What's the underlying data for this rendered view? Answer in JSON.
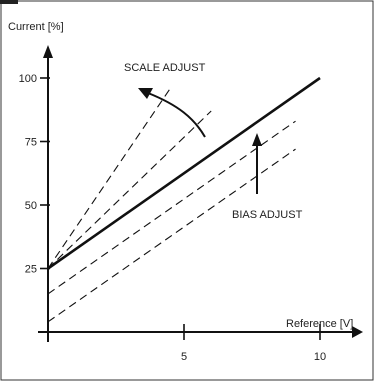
{
  "colors": {
    "ink": "#111111",
    "border": "#333333",
    "background": "#ffffff",
    "corner_tab": "#222222"
  },
  "chart_data": {
    "type": "line",
    "title": "",
    "xlabel": "Reference [V]",
    "ylabel": "Current [%]",
    "xlim": [
      0,
      11
    ],
    "ylim": [
      0,
      110
    ],
    "x_ticks": [
      {
        "value": 5,
        "label": "5"
      },
      {
        "value": 10,
        "label": "10"
      }
    ],
    "y_ticks": [
      {
        "value": 25,
        "label": "25"
      },
      {
        "value": 50,
        "label": "50"
      },
      {
        "value": 75,
        "label": "75"
      },
      {
        "value": 100,
        "label": "100"
      }
    ],
    "grid": false,
    "legend": "none",
    "series": [
      {
        "style": "solid",
        "x": [
          0,
          10
        ],
        "y": [
          25,
          100
        ]
      },
      {
        "style": "dashed",
        "x": [
          0,
          6
        ],
        "y": [
          25,
          87
        ]
      },
      {
        "style": "dashed",
        "x": [
          0,
          4.5
        ],
        "y": [
          25,
          96
        ]
      },
      {
        "style": "dashed",
        "x": [
          0,
          9.1
        ],
        "y": [
          15,
          83
        ]
      },
      {
        "style": "dashed",
        "x": [
          0,
          9.1
        ],
        "y": [
          4,
          72
        ]
      }
    ],
    "annotations": [
      {
        "text": "SCALE ADJUST",
        "arrow": "curved",
        "x": 3.9,
        "y": 95
      },
      {
        "text": "BIAS ADJUST",
        "arrow": "up",
        "x": 7.6,
        "y": 48
      }
    ]
  }
}
